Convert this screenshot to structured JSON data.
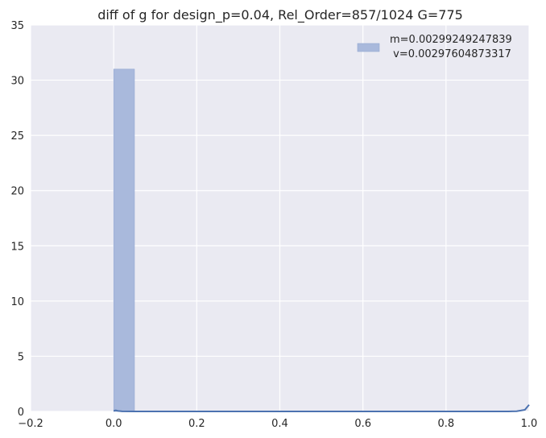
{
  "chart_data": {
    "type": "bar",
    "title": "diff of g for design_p=0.04, Rel_Order=857/1024 G=775",
    "xlabel": "",
    "ylabel": "",
    "xlim": [
      -0.2,
      1.0
    ],
    "ylim": [
      0,
      35
    ],
    "xticks": [
      -0.2,
      0.0,
      0.2,
      0.4,
      0.6,
      0.8,
      1.0
    ],
    "yticks": [
      0,
      5,
      10,
      15,
      20,
      25,
      30,
      35
    ],
    "xtick_labels": [
      "−0.2",
      "0.0",
      "0.2",
      "0.4",
      "0.6",
      "0.8",
      "1.0"
    ],
    "ytick_labels": [
      "0",
      "5",
      "10",
      "15",
      "20",
      "25",
      "30",
      "35"
    ],
    "grid": true,
    "legend_position": "top-right",
    "histogram": {
      "bin_start": 0.0,
      "bin_width": 0.05,
      "values": [
        31
      ],
      "color": "#a9b9dc"
    },
    "kde": {
      "color": "#4c72b0",
      "x": [
        0.0,
        0.005,
        0.01,
        0.02,
        0.05,
        0.2,
        0.4,
        0.6,
        0.8,
        0.95,
        0.97,
        0.98,
        0.99,
        1.0
      ],
      "y": [
        0.05,
        0.1,
        0.05,
        0.01,
        0.0,
        0.0,
        0.0,
        0.0,
        0.0,
        0.0,
        0.02,
        0.08,
        0.15,
        0.6
      ]
    },
    "legend": {
      "line1": "m=0.00299249247839",
      "line2": " v=0.00297604873317"
    },
    "colors": {
      "axes_bg": "#eaeaf2",
      "grid": "#ffffff",
      "text": "#262626"
    }
  }
}
